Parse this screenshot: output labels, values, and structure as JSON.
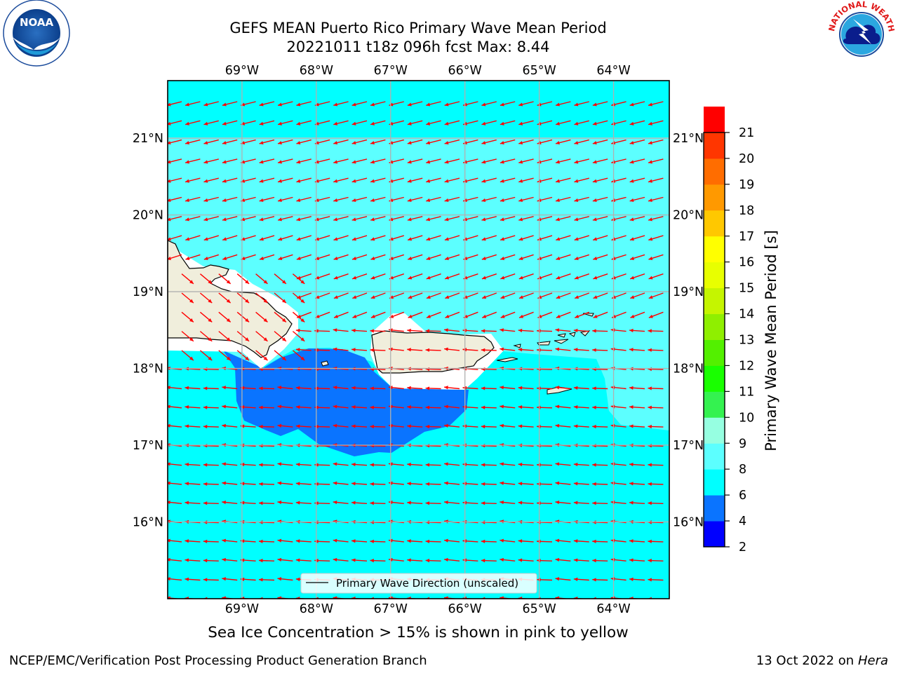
{
  "title": {
    "line1": "GEFS MEAN Puerto Rico Primary Wave Mean Period",
    "line2": "20221011 t18z 096h fcst   Max: 8.44"
  },
  "map": {
    "lon_range": [
      -70.0,
      -63.25
    ],
    "lat_range": [
      15.0,
      21.75
    ],
    "lon_ticks": [
      "69°W",
      "68°W",
      "67°W",
      "66°W",
      "65°W",
      "64°W"
    ],
    "lon_tick_values": [
      -69,
      -68,
      -67,
      -66,
      -65,
      -64
    ],
    "lat_ticks": [
      "16°N",
      "17°N",
      "18°N",
      "19°N",
      "20°N",
      "21°N"
    ],
    "lat_tick_values": [
      16,
      17,
      18,
      19,
      20,
      21
    ],
    "grid": true,
    "land_color": "#f0eedc",
    "arrow_color": "#ff0000",
    "legend_label": "Primary Wave Direction (unscaled)"
  },
  "colorbar": {
    "label": "Primary Wave Mean Period [s]",
    "ticks": [
      "2",
      "4",
      "6",
      "8",
      "9",
      "10",
      "11",
      "12",
      "13",
      "14",
      "15",
      "16",
      "17",
      "18",
      "19",
      "20",
      "21"
    ],
    "colors": [
      "#0000ff",
      "#0a74ff",
      "#00ffff",
      "#5cffff",
      "#96ffe1",
      "#34f250",
      "#19ff00",
      "#53f000",
      "#8fef00",
      "#c5f500",
      "#e8ff00",
      "#ffff00",
      "#ffc800",
      "#ff9900",
      "#ff6d00",
      "#ff3600",
      "#ff0000"
    ]
  },
  "field_colors": {
    "p6_8": "#00ffff",
    "p8_9": "#5cffff",
    "p4_6": "#0a74ff"
  },
  "note": "Sea Ice Concentration > 15% is shown in pink to yellow",
  "footer": {
    "left": "NCEP/EMC/Verification Post Processing Product Generation Branch",
    "right_prefix": "13 Oct 2022 on ",
    "right_machine": "Hera"
  },
  "logos": {
    "noaa_text": "NOAA",
    "nws_text": "NATIONAL WEATHER SERVICE"
  }
}
